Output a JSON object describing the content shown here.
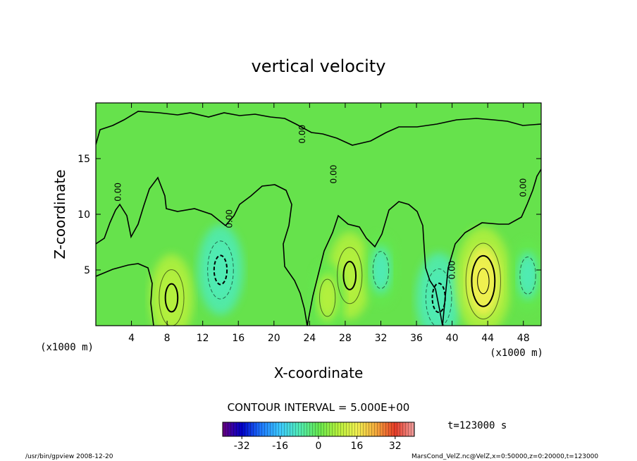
{
  "chart_data": {
    "type": "heatmap",
    "title": "vertical velocity",
    "xlabel": "X-coordinate",
    "ylabel": "Z-coordinate",
    "x_unit_left": "(x1000 m)",
    "x_unit_right": "(x1000 m)",
    "xlim": [
      0,
      50
    ],
    "ylim": [
      0,
      20
    ],
    "x_ticks": [
      4,
      8,
      12,
      16,
      20,
      24,
      28,
      32,
      36,
      40,
      44,
      48
    ],
    "y_ticks": [
      5,
      10,
      15
    ],
    "contour_interval": "CONTOUR INTERVAL = 5.000E+00",
    "zero_contour_label": "0.00",
    "colorbar": {
      "ticks": [
        -32,
        -16,
        0,
        16,
        32
      ],
      "range": [
        -40,
        40
      ],
      "colors": [
        "#6a0080",
        "#0000c8",
        "#1e78ff",
        "#3ccaff",
        "#50ebb4",
        "#64e850",
        "#b4f03c",
        "#f0f050",
        "#f5aa3c",
        "#e63c28",
        "#f0a0a0"
      ]
    },
    "time_label": "t=123000 s",
    "features": [
      {
        "kind": "updraft",
        "x": 8.5,
        "z": 2.5,
        "peak": 11
      },
      {
        "kind": "downdraft",
        "x": 14,
        "z": 5,
        "peak": -12
      },
      {
        "kind": "updraft",
        "x": 28.5,
        "z": 4.5,
        "peak": 11
      },
      {
        "kind": "downdraft",
        "x": 38.5,
        "z": 2.5,
        "peak": -12
      },
      {
        "kind": "updraft",
        "x": 43.5,
        "z": 4,
        "peak": 18
      },
      {
        "kind": "updraft",
        "x": 26,
        "z": 2.5,
        "peak": 6
      },
      {
        "kind": "downdraft",
        "x": 32,
        "z": 5,
        "peak": -6
      },
      {
        "kind": "downdraft",
        "x": 48.5,
        "z": 4.5,
        "peak": -6
      }
    ]
  },
  "footer": {
    "left": "/usr/bin/gpview   2008-12-20",
    "right": "MarsCond_VelZ.nc@VelZ,x=0:50000,z=0:20000,t=123000"
  }
}
